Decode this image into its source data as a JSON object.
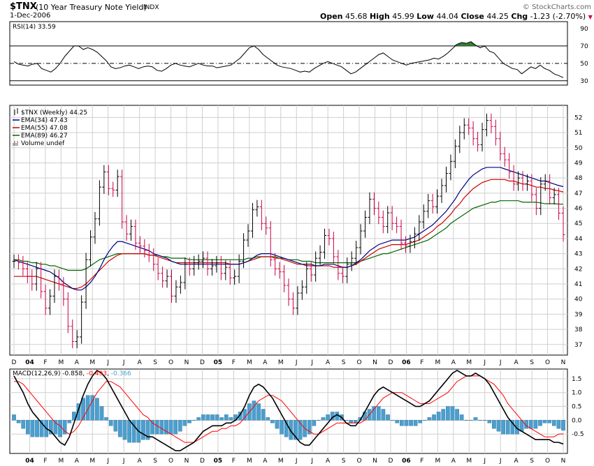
{
  "header": {
    "symbol": "$TNX",
    "description": "(10 Year Treasury Note Yield)",
    "exchange": "INDX",
    "date": "1-Dec-2006",
    "watermark": "© StockCharts.com",
    "open_label": "Open",
    "open": "45.68",
    "high_label": "High",
    "high": "45.99",
    "low_label": "Low",
    "low": "44.04",
    "close_label": "Close",
    "close": "44.25",
    "chg_label": "Chg",
    "chg": "-1.23 (-2.70%)"
  },
  "colors": {
    "price_up": "#000000",
    "price_down": "#cc0044",
    "ema34": "#000080",
    "ema55": "#cc0000",
    "ema89": "#006600",
    "rsi": "#000000",
    "macd": "#000000",
    "signal": "#ff0000",
    "histogram": "#4a9fd0",
    "grid": "#cfcfcf"
  },
  "chart_data": [
    {
      "type": "line",
      "title": "RSI(14) 33.59",
      "series": [
        {
          "name": "RSI(14)",
          "value_label": "33.59"
        }
      ],
      "y_ticks": [
        "30",
        "50",
        "70",
        "90"
      ],
      "ylim": [
        25,
        98
      ],
      "reference_lines": [
        30,
        50,
        70
      ],
      "points": [
        52,
        49,
        48,
        47,
        49,
        50,
        44,
        42,
        40,
        44,
        50,
        58,
        64,
        70,
        70,
        66,
        68,
        66,
        63,
        58,
        53,
        46,
        44,
        45,
        47,
        48,
        46,
        44,
        46,
        47,
        46,
        42,
        41,
        44,
        48,
        50,
        48,
        47,
        46,
        48,
        50,
        48,
        47,
        47,
        45,
        46,
        47,
        48,
        52,
        56,
        62,
        68,
        70,
        66,
        60,
        56,
        52,
        48,
        46,
        45,
        44,
        42,
        40,
        41,
        40,
        44,
        47,
        50,
        52,
        50,
        48,
        46,
        42,
        38,
        40,
        44,
        48,
        52,
        56,
        60,
        62,
        58,
        54,
        52,
        50,
        48,
        50,
        51,
        52,
        53,
        54,
        56,
        55,
        58,
        62,
        67,
        72,
        74,
        73,
        75,
        71,
        68,
        70,
        64,
        62,
        56,
        50,
        47,
        44,
        43,
        38,
        42,
        46,
        44,
        48,
        44,
        42,
        38,
        36,
        33.59
      ]
    },
    {
      "type": "line",
      "title": "$TNX (Weekly) 44.25",
      "legend": [
        {
          "label": "$TNX (Weekly) 44.25"
        },
        {
          "label": "EMA(34) 47.43"
        },
        {
          "label": "EMA(55) 47.08"
        },
        {
          "label": "EMA(89) 46.27"
        },
        {
          "label": "Volume undef"
        }
      ],
      "y_ticks": [
        "37",
        "38",
        "39",
        "40",
        "41",
        "42",
        "43",
        "44",
        "45",
        "46",
        "47",
        "48",
        "49",
        "50",
        "51",
        "52"
      ],
      "ylim": [
        36.3,
        52.8
      ],
      "x_labels": [
        "D",
        "04",
        "F",
        "M",
        "A",
        "M",
        "J",
        "J",
        "A",
        "S",
        "O",
        "N",
        "D",
        "05",
        "F",
        "M",
        "A",
        "M",
        "J",
        "J",
        "A",
        "S",
        "O",
        "N",
        "D",
        "06",
        "F",
        "M",
        "A",
        "M",
        "J",
        "J",
        "A",
        "S",
        "O",
        "N"
      ],
      "close": [
        42.5,
        42.4,
        42.0,
        41.5,
        41.0,
        42.0,
        40.5,
        39.4,
        40.2,
        41.5,
        41.0,
        40.0,
        38.2,
        37.2,
        37.5,
        39.8,
        42.6,
        44.1,
        45.3,
        47.4,
        48.4,
        47.3,
        47.2,
        48.1,
        45.1,
        44.3,
        44.8,
        43.7,
        43.5,
        43.2,
        42.9,
        42.3,
        41.7,
        41.2,
        41.5,
        40.2,
        40.8,
        41.1,
        42.3,
        42.0,
        42.4,
        42.5,
        42.7,
        42.0,
        42.2,
        42.4,
        41.7,
        42.1,
        41.4,
        41.5,
        42.5,
        43.9,
        44.5,
        45.9,
        46.1,
        45.0,
        44.7,
        42.6,
        42.0,
        41.8,
        40.9,
        40.0,
        39.4,
        40.4,
        40.8,
        42.0,
        41.6,
        42.7,
        43.1,
        44.2,
        44.0,
        42.8,
        41.7,
        41.5,
        42.3,
        42.7,
        43.4,
        44.5,
        45.4,
        46.6,
        46.0,
        45.4,
        44.8,
        45.7,
        45.0,
        44.8,
        43.7,
        43.5,
        43.8,
        44.3,
        45.1,
        45.8,
        46.5,
        46.1,
        46.8,
        47.5,
        48.3,
        49.1,
        50.1,
        51.0,
        51.5,
        51.3,
        50.6,
        50.2,
        51.2,
        51.8,
        51.4,
        50.6,
        49.6,
        49.2,
        48.4,
        47.6,
        48.0,
        47.6,
        47.8,
        46.9,
        46.0,
        47.6,
        47.8,
        46.7,
        46.9,
        45.68,
        44.25
      ],
      "ema34": [
        42.6,
        42.5,
        42.4,
        42.3,
        42.2,
        42.1,
        42.0,
        41.9,
        41.8,
        41.6,
        41.4,
        41.1,
        40.9,
        40.7,
        40.6,
        40.6,
        40.8,
        41.1,
        41.5,
        42.0,
        42.6,
        43.1,
        43.5,
        43.8,
        43.8,
        43.7,
        43.6,
        43.5,
        43.4,
        43.3,
        43.2,
        43.0,
        42.9,
        42.8,
        42.7,
        42.5,
        42.4,
        42.3,
        42.3,
        42.3,
        42.3,
        42.3,
        42.3,
        42.3,
        42.3,
        42.3,
        42.3,
        42.3,
        42.3,
        42.3,
        42.3,
        42.4,
        42.5,
        42.7,
        42.9,
        43.0,
        43.0,
        43.0,
        42.9,
        42.8,
        42.7,
        42.6,
        42.5,
        42.4,
        42.3,
        42.3,
        42.3,
        42.2,
        42.2,
        42.3,
        42.3,
        42.3,
        42.2,
        42.1,
        42.1,
        42.2,
        42.4,
        42.6,
        42.9,
        43.2,
        43.4,
        43.6,
        43.7,
        43.8,
        43.9,
        43.9,
        43.9,
        43.9,
        44.0,
        44.1,
        44.3,
        44.5,
        44.7,
        44.9,
        45.2,
        45.5,
        45.8,
        46.2,
        46.6,
        47.1,
        47.5,
        47.9,
        48.2,
        48.4,
        48.6,
        48.7,
        48.7,
        48.7,
        48.7,
        48.6,
        48.5,
        48.4,
        48.3,
        48.2,
        48.1,
        48.0,
        47.9,
        47.8,
        47.8,
        47.7,
        47.6,
        47.5,
        47.43
      ],
      "ema55": [
        41.5,
        41.5,
        41.5,
        41.5,
        41.5,
        41.5,
        41.4,
        41.3,
        41.2,
        41.1,
        41.0,
        40.9,
        40.8,
        40.7,
        40.7,
        40.8,
        41.0,
        41.3,
        41.6,
        41.9,
        42.2,
        42.5,
        42.7,
        42.9,
        43.0,
        43.0,
        43.0,
        43.0,
        43.0,
        43.0,
        42.9,
        42.9,
        42.8,
        42.7,
        42.6,
        42.5,
        42.4,
        42.4,
        42.4,
        42.4,
        42.4,
        42.4,
        42.4,
        42.4,
        42.4,
        42.4,
        42.4,
        42.4,
        42.3,
        42.3,
        42.3,
        42.4,
        42.5,
        42.6,
        42.7,
        42.8,
        42.8,
        42.8,
        42.7,
        42.7,
        42.6,
        42.5,
        42.4,
        42.3,
        42.3,
        42.2,
        42.2,
        42.2,
        42.2,
        42.2,
        42.2,
        42.1,
        42.1,
        42.1,
        42.1,
        42.2,
        42.3,
        42.5,
        42.7,
        42.9,
        43.1,
        43.3,
        43.4,
        43.5,
        43.6,
        43.6,
        43.6,
        43.6,
        43.7,
        43.8,
        43.9,
        44.1,
        44.3,
        44.5,
        44.8,
        45.0,
        45.3,
        45.6,
        46.0,
        46.3,
        46.7,
        47.0,
        47.3,
        47.5,
        47.7,
        47.8,
        47.9,
        47.9,
        47.9,
        47.9,
        47.8,
        47.8,
        47.7,
        47.6,
        47.6,
        47.5,
        47.4,
        47.4,
        47.3,
        47.3,
        47.2,
        47.15,
        47.08
      ],
      "ema89": [
        42.6,
        42.6,
        42.5,
        42.5,
        42.4,
        42.4,
        42.3,
        42.3,
        42.2,
        42.2,
        42.1,
        42.0,
        41.9,
        41.9,
        41.9,
        41.9,
        42.0,
        42.2,
        42.4,
        42.6,
        42.7,
        42.8,
        42.9,
        43.0,
        43.0,
        43.0,
        43.0,
        43.0,
        43.0,
        43.0,
        42.9,
        42.9,
        42.9,
        42.8,
        42.8,
        42.7,
        42.7,
        42.7,
        42.7,
        42.6,
        42.6,
        42.6,
        42.6,
        42.6,
        42.6,
        42.6,
        42.6,
        42.6,
        42.6,
        42.6,
        42.6,
        42.6,
        42.7,
        42.7,
        42.8,
        42.8,
        42.8,
        42.8,
        42.8,
        42.7,
        42.7,
        42.6,
        42.6,
        42.6,
        42.5,
        42.5,
        42.5,
        42.4,
        42.4,
        42.4,
        42.4,
        42.4,
        42.4,
        42.4,
        42.4,
        42.4,
        42.4,
        42.5,
        42.6,
        42.7,
        42.8,
        42.9,
        43.0,
        43.0,
        43.1,
        43.2,
        43.3,
        43.4,
        43.5,
        43.6,
        43.7,
        43.8,
        43.9,
        44.1,
        44.3,
        44.5,
        44.7,
        45.0,
        45.2,
        45.4,
        45.6,
        45.8,
        46.0,
        46.1,
        46.2,
        46.3,
        46.4,
        46.4,
        46.5,
        46.5,
        46.5,
        46.5,
        46.5,
        46.4,
        46.4,
        46.4,
        46.4,
        46.35,
        46.3,
        46.3,
        46.3,
        46.28,
        46.27
      ]
    },
    {
      "type": "line",
      "title": "MACD(12,26,9) -0.858, -0.493, -0.366",
      "series": [
        {
          "name": "MACD(12,26,9)",
          "value_label": "-0.858"
        },
        {
          "name": "signal",
          "value_label": "-0.493"
        },
        {
          "name": "histogram",
          "value_label": "-0.366"
        }
      ],
      "y_ticks": [
        "-0.5",
        "0.0",
        "0.5",
        "1.0",
        "1.5"
      ],
      "ylim": [
        -1.2,
        1.85
      ],
      "x_labels": [
        "04",
        "F",
        "M",
        "A",
        "M",
        "J",
        "J",
        "A",
        "S",
        "O",
        "N",
        "D",
        "05",
        "F",
        "M",
        "A",
        "M",
        "J",
        "J",
        "A",
        "S",
        "O",
        "N",
        "D",
        "06",
        "F",
        "M",
        "A",
        "M",
        "J",
        "J",
        "A",
        "S",
        "O",
        "N"
      ],
      "macd": [
        1.6,
        1.3,
        1.0,
        0.6,
        0.3,
        0.1,
        -0.1,
        -0.3,
        -0.4,
        -0.6,
        -0.8,
        -0.9,
        -0.6,
        -0.1,
        0.4,
        0.9,
        1.3,
        1.6,
        1.8,
        1.7,
        1.5,
        1.2,
        0.9,
        0.6,
        0.3,
        0.0,
        -0.2,
        -0.4,
        -0.5,
        -0.6,
        -0.6,
        -0.7,
        -0.8,
        -0.9,
        -1.0,
        -1.1,
        -1.1,
        -1.0,
        -0.9,
        -0.8,
        -0.6,
        -0.4,
        -0.3,
        -0.2,
        -0.2,
        -0.2,
        -0.1,
        -0.1,
        0.0,
        0.2,
        0.5,
        0.9,
        1.2,
        1.3,
        1.2,
        1.0,
        0.8,
        0.5,
        0.2,
        -0.1,
        -0.4,
        -0.6,
        -0.8,
        -0.9,
        -0.9,
        -0.7,
        -0.5,
        -0.3,
        -0.1,
        0.1,
        0.2,
        0.1,
        -0.1,
        -0.2,
        -0.2,
        0.0,
        0.3,
        0.6,
        0.9,
        1.1,
        1.2,
        1.1,
        1.0,
        0.9,
        0.8,
        0.7,
        0.6,
        0.5,
        0.5,
        0.6,
        0.7,
        0.9,
        1.1,
        1.3,
        1.5,
        1.7,
        1.8,
        1.7,
        1.6,
        1.6,
        1.7,
        1.6,
        1.5,
        1.3,
        1.0,
        0.7,
        0.4,
        0.1,
        -0.1,
        -0.3,
        -0.4,
        -0.5,
        -0.6,
        -0.7,
        -0.7,
        -0.7,
        -0.7,
        -0.8,
        -0.8,
        -0.858
      ],
      "signal": [
        1.4,
        1.4,
        1.3,
        1.1,
        0.9,
        0.7,
        0.5,
        0.3,
        0.1,
        -0.1,
        -0.2,
        -0.4,
        -0.5,
        -0.4,
        -0.2,
        0.1,
        0.4,
        0.7,
        1.0,
        1.2,
        1.4,
        1.4,
        1.3,
        1.2,
        1.0,
        0.8,
        0.6,
        0.4,
        0.2,
        0.1,
        -0.1,
        -0.2,
        -0.3,
        -0.4,
        -0.5,
        -0.6,
        -0.7,
        -0.8,
        -0.8,
        -0.8,
        -0.7,
        -0.6,
        -0.5,
        -0.4,
        -0.4,
        -0.3,
        -0.3,
        -0.2,
        -0.2,
        -0.1,
        0.1,
        0.3,
        0.5,
        0.7,
        0.8,
        0.9,
        0.9,
        0.8,
        0.7,
        0.5,
        0.3,
        0.1,
        -0.1,
        -0.3,
        -0.4,
        -0.5,
        -0.5,
        -0.4,
        -0.3,
        -0.2,
        -0.1,
        -0.1,
        -0.1,
        -0.1,
        -0.1,
        -0.1,
        0.0,
        0.2,
        0.4,
        0.6,
        0.8,
        0.9,
        1.0,
        1.0,
        1.0,
        0.9,
        0.8,
        0.7,
        0.6,
        0.6,
        0.6,
        0.7,
        0.8,
        0.9,
        1.0,
        1.2,
        1.4,
        1.5,
        1.6,
        1.6,
        1.6,
        1.6,
        1.5,
        1.4,
        1.3,
        1.1,
        0.9,
        0.6,
        0.4,
        0.2,
        0.0,
        -0.2,
        -0.3,
        -0.4,
        -0.5,
        -0.6,
        -0.6,
        -0.6,
        -0.5,
        -0.493
      ]
    }
  ]
}
